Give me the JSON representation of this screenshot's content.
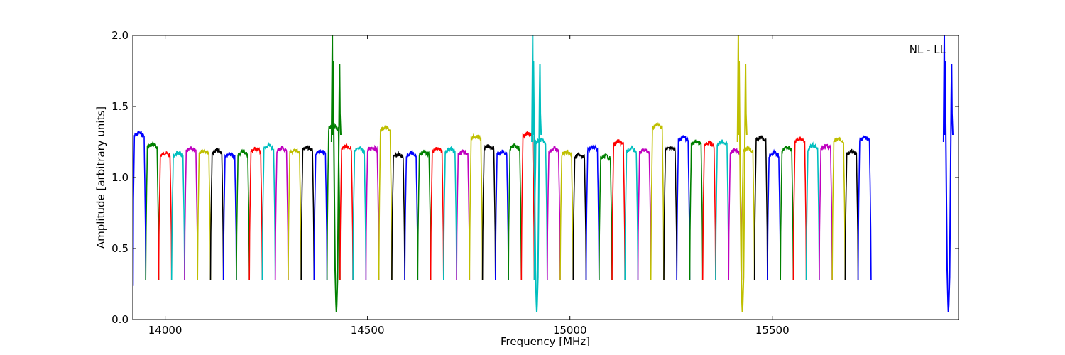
{
  "chart_data": {
    "type": "line",
    "title": "",
    "xlabel": "Frequency [MHz]",
    "ylabel": "Amplitude [arbitrary units]",
    "xlim": [
      13920,
      15960
    ],
    "ylim": [
      0,
      2.0
    ],
    "xticks": [
      14000,
      14500,
      15000,
      15500
    ],
    "yticks": [
      0.0,
      0.5,
      1.0,
      1.5,
      2.0
    ],
    "annotation": "NL - LL",
    "annotation_position": "top-right",
    "grid": false,
    "color_cycle": [
      "#0000ff",
      "#008000",
      "#ff0000",
      "#00bfbf",
      "#bf00bf",
      "#bfbf00",
      "#000000"
    ],
    "subband_spacing_mhz": 32,
    "subband_level": [
      1.33,
      1.25,
      1.19,
      1.19,
      1.22,
      1.21,
      1.21,
      1.18,
      1.2,
      1.22,
      1.24,
      1.22,
      1.21,
      1.23,
      1.2,
      1.38,
      1.24,
      1.22,
      1.23,
      1.37,
      1.18,
      1.19,
      1.2,
      1.22,
      1.22,
      1.2,
      1.31,
      1.24,
      1.2,
      1.24,
      1.33,
      1.28,
      1.22,
      1.2,
      1.18,
      1.23,
      1.17,
      1.27,
      1.22,
      1.21,
      1.39,
      1.23,
      1.3,
      1.27,
      1.26,
      1.27,
      1.21,
      1.22,
      1.3,
      1.19,
      1.23,
      1.29,
      1.24,
      1.24,
      1.29,
      1.2,
      1.3
    ],
    "dip_level": 0.28,
    "deep_dips": [
      {
        "x": 14423,
        "min": 0.05,
        "max": 2.0,
        "color": "#008000"
      },
      {
        "x": 14918,
        "min": 0.05,
        "max": 2.0,
        "color": "#00bfbf"
      },
      {
        "x": 15426,
        "min": 0.05,
        "max": 2.0,
        "color": "#bfbf00"
      },
      {
        "x": 15935,
        "min": 0.05,
        "max": 2.0,
        "color": "#0000ff"
      }
    ]
  }
}
